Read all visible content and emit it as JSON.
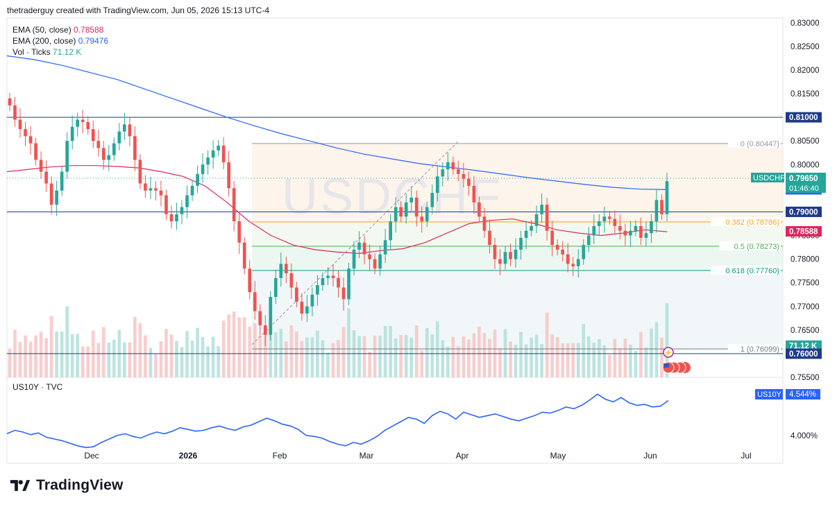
{
  "header": {
    "attribution": "thetraderguy created with TradingView.com, Jun 05, 2026 15:13 UTC-4"
  },
  "legend": {
    "ema50_label": "EMA (50, close)",
    "ema50_value": "0.78588",
    "ema200_label": "EMA (200, close)",
    "ema200_value": "0.79476",
    "vol_label": "Vol · Ticks",
    "vol_value": "71.12 K"
  },
  "watermark": "USDCHF",
  "sub_pane": {
    "label": "US10Y · TVC",
    "tag_symbol": "US10Y",
    "tag_value": "4.544%",
    "axis_label": "4.000%"
  },
  "footer": {
    "brand": "TradingView"
  },
  "colors": {
    "up": "#26a69a",
    "down": "#ef5350",
    "ema50": "#e0245e",
    "ema200": "#2962ff",
    "us10y": "#2962ff"
  },
  "chart_data": [
    {
      "type": "candlestick",
      "symbol": "USDCHF",
      "ylim": [
        0.755,
        0.831
      ],
      "y_ticks": [
        "0.83000",
        "0.82500",
        "0.82000",
        "0.81500",
        "0.81000",
        "0.80500",
        "0.80000",
        "0.79500",
        "0.79000",
        "0.78500",
        "0.78000",
        "0.77500",
        "0.77000",
        "0.76500",
        "0.76000",
        "0.75500"
      ],
      "x_ticks": [
        "Dec",
        "2026",
        "Feb",
        "Mar",
        "Apr",
        "May",
        "Jun",
        "Jul"
      ],
      "price_tag": {
        "symbol": "USDCHF",
        "price": "0.79650",
        "countdown": "01:46:40"
      },
      "level_tags": [
        {
          "value": "0.81000",
          "kind": "line"
        },
        {
          "value": "0.79476",
          "kind": "ema200"
        },
        {
          "value": "0.79000",
          "kind": "line"
        },
        {
          "value": "0.78588",
          "kind": "ema50"
        },
        {
          "value": "71.12 K",
          "kind": "volume"
        },
        {
          "value": "0.76000",
          "kind": "line"
        }
      ],
      "horizontal_lines": [
        0.81,
        0.79,
        0.76
      ],
      "fibonacci": [
        {
          "ratio": "0",
          "label": "0 (0.80447)",
          "price": 0.80447
        },
        {
          "ratio": "0.382",
          "label": "0.382 (0.78786)",
          "price": 0.78786
        },
        {
          "ratio": "0.5",
          "label": "0.5 (0.78273)",
          "price": 0.78273
        },
        {
          "ratio": "0.618",
          "label": "0.618 (0.77760)",
          "price": 0.7776
        },
        {
          "ratio": "1",
          "label": "1 (0.76099)",
          "price": 0.76099
        }
      ],
      "close_path": [
        0.8125,
        0.8095,
        0.8075,
        0.806,
        0.8045,
        0.801,
        0.7985,
        0.796,
        0.7915,
        0.7945,
        0.7985,
        0.805,
        0.808,
        0.8095,
        0.809,
        0.8075,
        0.805,
        0.8035,
        0.801,
        0.802,
        0.8045,
        0.807,
        0.8085,
        0.806,
        0.801,
        0.796,
        0.7945,
        0.795,
        0.7945,
        0.7935,
        0.7895,
        0.788,
        0.7895,
        0.791,
        0.7935,
        0.7955,
        0.798,
        0.8,
        0.8015,
        0.803,
        0.804,
        0.8005,
        0.795,
        0.788,
        0.7835,
        0.778,
        0.773,
        0.769,
        0.766,
        0.764,
        0.772,
        0.776,
        0.779,
        0.777,
        0.774,
        0.771,
        0.7685,
        0.77,
        0.7725,
        0.7745,
        0.776,
        0.7765,
        0.776,
        0.774,
        0.7715,
        0.778,
        0.782,
        0.7835,
        0.781,
        0.78,
        0.778,
        0.781,
        0.784,
        0.788,
        0.791,
        0.789,
        0.792,
        0.793,
        0.789,
        0.788,
        0.791,
        0.794,
        0.7975,
        0.799,
        0.8005,
        0.799,
        0.798,
        0.797,
        0.7955,
        0.792,
        0.789,
        0.786,
        0.783,
        0.78,
        0.779,
        0.7815,
        0.78,
        0.782,
        0.7845,
        0.786,
        0.787,
        0.7895,
        0.7915,
        0.786,
        0.783,
        0.782,
        0.781,
        0.779,
        0.7785,
        0.78,
        0.783,
        0.785,
        0.787,
        0.788,
        0.789,
        0.7885,
        0.787,
        0.786,
        0.785,
        0.786,
        0.787,
        0.7845,
        0.7855,
        0.788,
        0.7925,
        0.7895,
        0.7965
      ],
      "ema50_path": [
        0.7985,
        0.799,
        0.7995,
        0.7998,
        0.7998,
        0.7996,
        0.7993,
        0.7985,
        0.7975,
        0.7955,
        0.792,
        0.788,
        0.785,
        0.783,
        0.782,
        0.7815,
        0.7812,
        0.7818,
        0.7822,
        0.7835,
        0.7855,
        0.7875,
        0.7882,
        0.7885,
        0.7875,
        0.7862,
        0.7855,
        0.785,
        0.7855,
        0.7862,
        0.7858
      ],
      "ema200_path": [
        0.823,
        0.8222,
        0.821,
        0.8195,
        0.818,
        0.816,
        0.814,
        0.812,
        0.81,
        0.8082,
        0.8065,
        0.805,
        0.8035,
        0.8022,
        0.8012,
        0.8002,
        0.7995,
        0.7988,
        0.798,
        0.7972,
        0.7965,
        0.7958,
        0.7952,
        0.7948,
        0.7947
      ]
    },
    {
      "type": "line",
      "symbol": "US10Y",
      "ylim": [
        3.85,
        4.75
      ],
      "values": [
        4.16,
        4.2,
        4.18,
        4.15,
        4.17,
        4.12,
        4.1,
        4.08,
        4.05,
        4.02,
        4.0,
        4.01,
        4.06,
        4.1,
        4.14,
        4.16,
        4.13,
        4.11,
        4.15,
        4.18,
        4.16,
        4.19,
        4.23,
        4.21,
        4.19,
        4.2,
        4.23,
        4.25,
        4.22,
        4.2,
        4.24,
        4.26,
        4.3,
        4.34,
        4.31,
        4.27,
        4.25,
        4.21,
        4.14,
        4.13,
        4.11,
        4.07,
        4.04,
        4.02,
        4.06,
        4.04,
        4.08,
        4.13,
        4.2,
        4.25,
        4.3,
        4.35,
        4.33,
        4.28,
        4.37,
        4.42,
        4.39,
        4.33,
        4.41,
        4.38,
        4.35,
        4.37,
        4.39,
        4.36,
        4.33,
        4.31,
        4.34,
        4.37,
        4.41,
        4.4,
        4.43,
        4.47,
        4.45,
        4.49,
        4.55,
        4.62,
        4.56,
        4.53,
        4.58,
        4.52,
        4.49,
        4.5,
        4.47,
        4.48,
        4.545
      ]
    }
  ]
}
